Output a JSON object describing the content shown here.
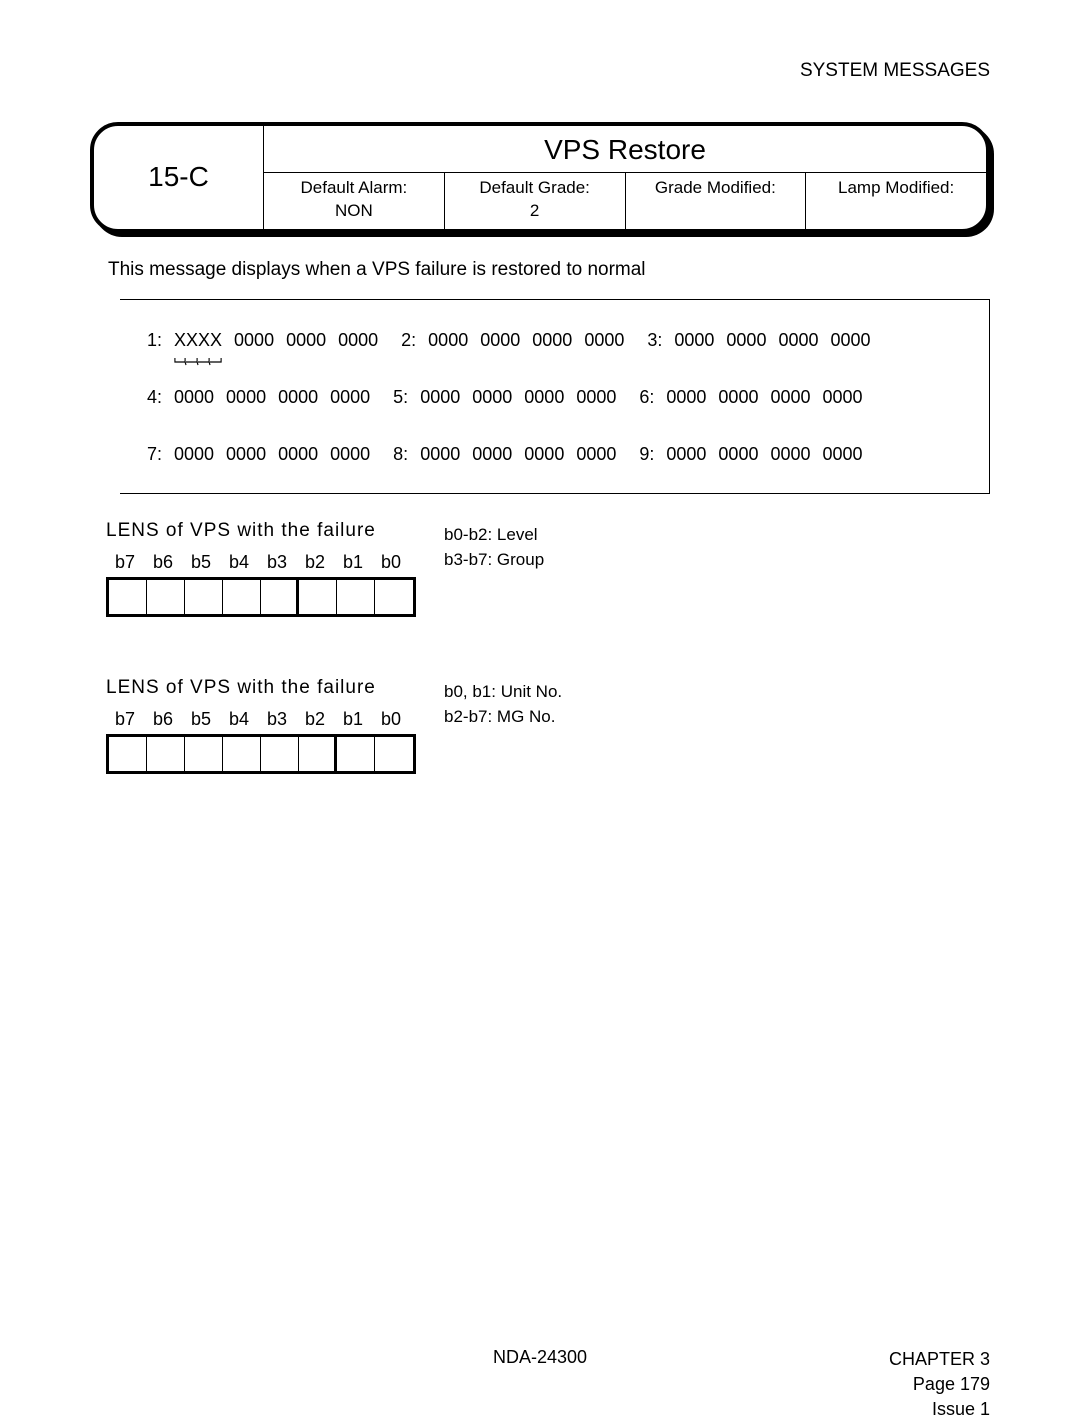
{
  "header": {
    "right": "SYSTEM MESSAGES"
  },
  "title_box": {
    "code": "15-C",
    "title": "VPS Restore",
    "cells": [
      {
        "label": "Default Alarm:",
        "value": "NON"
      },
      {
        "label": "Default Grade:",
        "value": "2"
      },
      {
        "label": "Grade Modified:",
        "value": ""
      },
      {
        "label": "Lamp Modified:",
        "value": ""
      }
    ]
  },
  "description": "This message displays when a VPS failure is restored to normal",
  "data_rows": [
    [
      {
        "n": "1:",
        "v": [
          "XXXX",
          "0000",
          "0000",
          "0000"
        ],
        "first_underline": true
      },
      {
        "n": "2:",
        "v": [
          "0000",
          "0000",
          "0000",
          "0000"
        ]
      },
      {
        "n": "3:",
        "v": [
          "0000",
          "0000",
          "0000",
          "0000"
        ]
      }
    ],
    [
      {
        "n": "4:",
        "v": [
          "0000",
          "0000",
          "0000",
          "0000"
        ]
      },
      {
        "n": "5:",
        "v": [
          "0000",
          "0000",
          "0000",
          "0000"
        ]
      },
      {
        "n": "6:",
        "v": [
          "0000",
          "0000",
          "0000",
          "0000"
        ]
      }
    ],
    [
      {
        "n": "7:",
        "v": [
          "0000",
          "0000",
          "0000",
          "0000"
        ]
      },
      {
        "n": "8:",
        "v": [
          "0000",
          "0000",
          "0000",
          "0000"
        ]
      },
      {
        "n": "9:",
        "v": [
          "0000",
          "0000",
          "0000",
          "0000"
        ]
      }
    ]
  ],
  "lens_blocks": [
    {
      "title": "LENS of VPS with the failure",
      "bits": [
        "b7",
        "b6",
        "b5",
        "b4",
        "b3",
        "b2",
        "b1",
        "b0"
      ],
      "thick_after_index": 4,
      "notes": [
        "b0-b2: Level",
        "b3-b7: Group"
      ]
    },
    {
      "title": "LENS of VPS with the failure",
      "bits": [
        "b7",
        "b6",
        "b5",
        "b4",
        "b3",
        "b2",
        "b1",
        "b0"
      ],
      "thick_after_index": 5,
      "notes": [
        "b0, b1: Unit No.",
        "b2-b7: MG No."
      ]
    }
  ],
  "footer": {
    "center": "NDA-24300",
    "chapter": "CHAPTER 3",
    "page": "Page 179",
    "issue": "Issue 1"
  },
  "colors": {
    "text": "#000000",
    "bg": "#ffffff",
    "border": "#000000"
  }
}
